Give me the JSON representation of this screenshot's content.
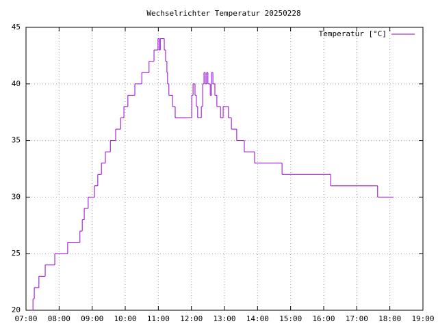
{
  "chart_data": {
    "type": "line",
    "title": "Wechselrichter Temperatur 20250228",
    "xlim": [
      7,
      19
    ],
    "xticks": [
      {
        "value": 7,
        "label": "07:00"
      },
      {
        "value": 8,
        "label": "08:00"
      },
      {
        "value": 9,
        "label": "09:00"
      },
      {
        "value": 10,
        "label": "10:00"
      },
      {
        "value": 11,
        "label": "11:00"
      },
      {
        "value": 12,
        "label": "12:00"
      },
      {
        "value": 13,
        "label": "13:00"
      },
      {
        "value": 14,
        "label": "14:00"
      },
      {
        "value": 15,
        "label": "15:00"
      },
      {
        "value": 16,
        "label": "16:00"
      },
      {
        "value": 17,
        "label": "17:00"
      },
      {
        "value": 18,
        "label": "18:00"
      },
      {
        "value": 19,
        "label": "19:00"
      }
    ],
    "ylim": [
      20,
      45
    ],
    "yticks": [
      20,
      25,
      30,
      35,
      40,
      45
    ],
    "grid": true,
    "legend": "top-right",
    "x": [
      7.19,
      7.21,
      7.25,
      7.39,
      7.58,
      7.87,
      8.26,
      8.63,
      8.7,
      8.76,
      8.88,
      9.07,
      9.17,
      9.28,
      9.4,
      9.55,
      9.71,
      9.86,
      9.96,
      10.08,
      10.29,
      10.5,
      10.72,
      10.87,
      10.99,
      11.03,
      11.06,
      11.18,
      11.22,
      11.26,
      11.28,
      11.32,
      11.43,
      11.51,
      12.01,
      12.05,
      12.11,
      12.15,
      12.19,
      12.3,
      12.34,
      12.38,
      12.42,
      12.46,
      12.5,
      12.57,
      12.61,
      12.65,
      12.71,
      12.77,
      12.88,
      12.96,
      13.12,
      13.21,
      13.37,
      13.6,
      13.91,
      14.74,
      16.21,
      17.63,
      18.11
    ],
    "series": [
      {
        "name": "Temperatur [°C]",
        "color": "#9400d3",
        "values": [
          20,
          21,
          22,
          23,
          24,
          25,
          26,
          27,
          28,
          29,
          30,
          31,
          32,
          33,
          34,
          35,
          36,
          37,
          38,
          39,
          40,
          41,
          42,
          43,
          44,
          43,
          44,
          43,
          42,
          41,
          40,
          39,
          38,
          37,
          39,
          40,
          39,
          38,
          37,
          38,
          40,
          41,
          40,
          41,
          40,
          39,
          41,
          40,
          39,
          38,
          37,
          38,
          37,
          36,
          35,
          34,
          33,
          32,
          31,
          30,
          30
        ]
      }
    ]
  }
}
